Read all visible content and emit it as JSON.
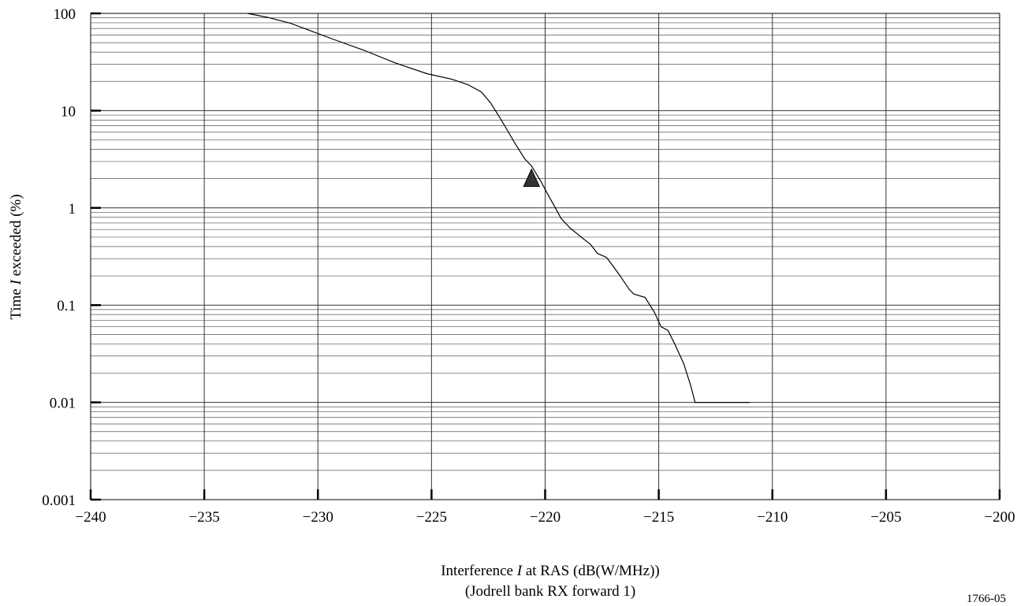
{
  "figure_id": "1766-05",
  "chart_data": {
    "type": "line",
    "title": "",
    "xlabel_parts": [
      "Interference ",
      "I",
      " at RAS (dB(W/MHz))"
    ],
    "xlabel_line2": "(Jodrell bank RX forward 1)",
    "ylabel_parts": [
      "Time ",
      "I",
      " exceeded (%)"
    ],
    "xlim": [
      -240,
      -200
    ],
    "ylim": [
      0.001,
      100
    ],
    "yscale": "log",
    "grid": true,
    "x_tick_values": [
      -240,
      -235,
      -230,
      -225,
      -220,
      -215,
      -210,
      -205,
      -200
    ],
    "x_tick_labels": [
      "−240",
      "−235",
      "−230",
      "−225",
      "−220",
      "−215",
      "−210",
      "−205",
      "−200"
    ],
    "y_tick_values": [
      0.001,
      0.01,
      0.1,
      1,
      10,
      100
    ],
    "y_tick_labels": [
      "0.001",
      "0.01",
      "0.1",
      "1",
      "10",
      "100"
    ],
    "series": [
      {
        "x": [
          -233.1,
          -232.2,
          -231.2,
          -230.3,
          -229.4,
          -228.0,
          -226.6,
          -225.2,
          -224.1,
          -223.4,
          -222.8,
          -222.4,
          -222.0,
          -221.7,
          -221.3,
          -220.9,
          -220.6,
          -220.2,
          -219.9,
          -219.6,
          -219.3,
          -218.9,
          -218.5,
          -218.0,
          -217.7,
          -217.3,
          -217.0,
          -216.7,
          -216.3,
          -216.1,
          -215.6,
          -215.2,
          -214.9,
          -214.6,
          -214.3,
          -213.9,
          -213.6,
          -213.4,
          -211.0
        ],
        "y": [
          100,
          91,
          79,
          66,
          55,
          42,
          31,
          24,
          21,
          18.5,
          15.5,
          12,
          8.5,
          6.5,
          4.5,
          3.2,
          2.7,
          1.9,
          1.4,
          1.05,
          0.78,
          0.62,
          0.52,
          0.42,
          0.34,
          0.31,
          0.25,
          0.2,
          0.145,
          0.13,
          0.12,
          0.085,
          0.06,
          0.055,
          0.04,
          0.025,
          0.015,
          0.01,
          0.01
        ]
      }
    ],
    "marker": {
      "symbol": "triangle",
      "x": -220.6,
      "y": 2.0,
      "color": "#333333"
    }
  }
}
